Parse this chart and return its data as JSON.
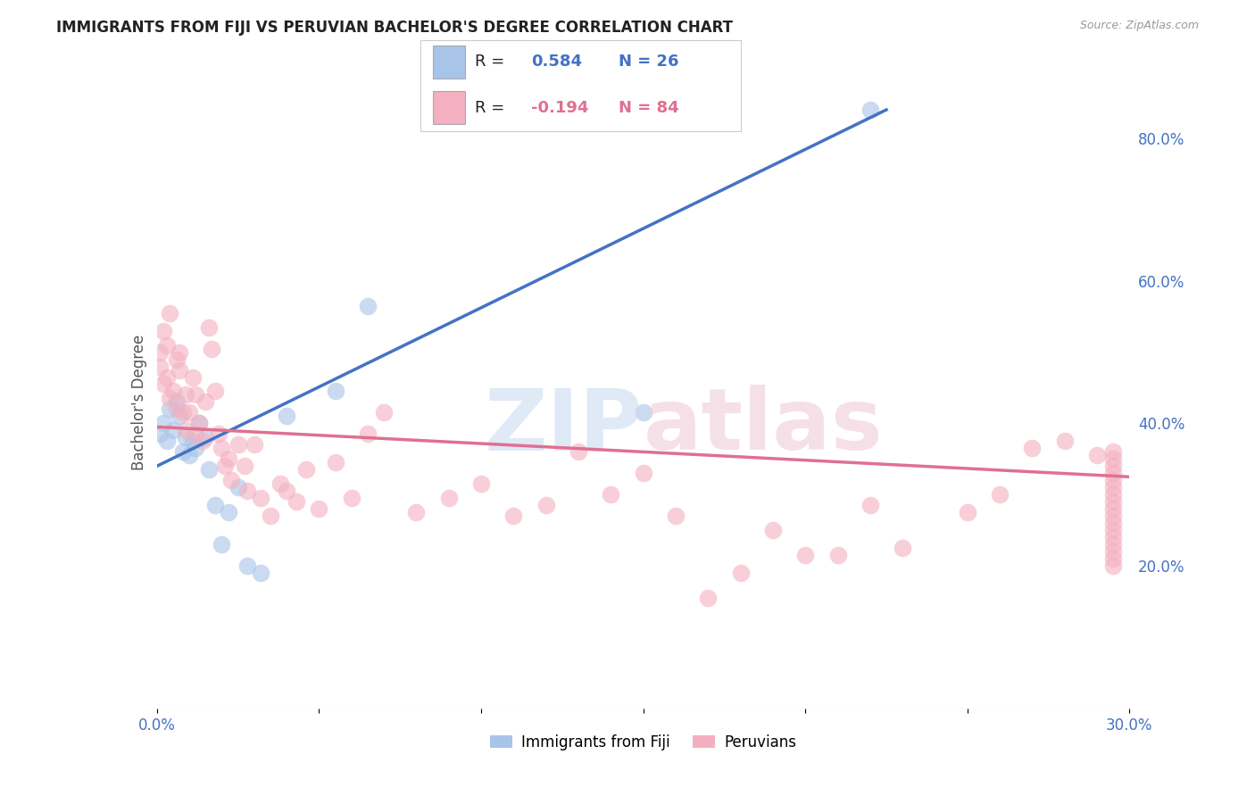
{
  "title": "IMMIGRANTS FROM FIJI VS PERUVIAN BACHELOR'S DEGREE CORRELATION CHART",
  "source": "Source: ZipAtlas.com",
  "ylabel": "Bachelor's Degree",
  "xlim": [
    0.0,
    0.3
  ],
  "ylim": [
    0.0,
    0.86
  ],
  "fiji_color": "#a8c4e8",
  "fiji_color_line": "#4472c4",
  "peru_color": "#f4b0c0",
  "peru_color_line": "#e07090",
  "fiji_R": "0.584",
  "fiji_N": "26",
  "peru_R": "-0.194",
  "peru_N": "84",
  "legend_R_color": "#4472c4",
  "legend_neg_R_color": "#e07090",
  "background_color": "#ffffff",
  "grid_color": "#dddddd",
  "fiji_line_x": [
    0.0,
    0.225
  ],
  "fiji_line_y": [
    0.34,
    0.84
  ],
  "peru_line_x": [
    0.0,
    0.3
  ],
  "peru_line_y": [
    0.395,
    0.325
  ],
  "fiji_x": [
    0.001,
    0.002,
    0.003,
    0.004,
    0.005,
    0.006,
    0.007,
    0.008,
    0.009,
    0.01,
    0.011,
    0.012,
    0.013,
    0.015,
    0.016,
    0.018,
    0.02,
    0.022,
    0.025,
    0.028,
    0.032,
    0.04,
    0.055,
    0.065,
    0.15,
    0.22
  ],
  "fiji_y": [
    0.385,
    0.4,
    0.375,
    0.42,
    0.39,
    0.43,
    0.41,
    0.36,
    0.38,
    0.355,
    0.375,
    0.365,
    0.4,
    0.38,
    0.335,
    0.285,
    0.23,
    0.275,
    0.31,
    0.2,
    0.19,
    0.41,
    0.445,
    0.565,
    0.415,
    0.84
  ],
  "peru_x": [
    0.001,
    0.001,
    0.002,
    0.002,
    0.003,
    0.003,
    0.004,
    0.004,
    0.005,
    0.006,
    0.006,
    0.007,
    0.007,
    0.008,
    0.009,
    0.009,
    0.01,
    0.011,
    0.012,
    0.012,
    0.013,
    0.014,
    0.015,
    0.016,
    0.017,
    0.018,
    0.019,
    0.02,
    0.021,
    0.022,
    0.023,
    0.025,
    0.027,
    0.028,
    0.03,
    0.032,
    0.035,
    0.038,
    0.04,
    0.043,
    0.046,
    0.05,
    0.055,
    0.06,
    0.065,
    0.07,
    0.08,
    0.09,
    0.1,
    0.11,
    0.12,
    0.13,
    0.14,
    0.15,
    0.16,
    0.17,
    0.18,
    0.19,
    0.2,
    0.21,
    0.22,
    0.23,
    0.25,
    0.26,
    0.27,
    0.28,
    0.29,
    0.295,
    0.295,
    0.295,
    0.295,
    0.295,
    0.295,
    0.295,
    0.295,
    0.295,
    0.295,
    0.295,
    0.295,
    0.295,
    0.295,
    0.295,
    0.295,
    0.295
  ],
  "peru_y": [
    0.5,
    0.48,
    0.455,
    0.53,
    0.465,
    0.51,
    0.435,
    0.555,
    0.445,
    0.49,
    0.42,
    0.5,
    0.475,
    0.415,
    0.39,
    0.44,
    0.415,
    0.465,
    0.385,
    0.44,
    0.4,
    0.375,
    0.43,
    0.535,
    0.505,
    0.445,
    0.385,
    0.365,
    0.34,
    0.35,
    0.32,
    0.37,
    0.34,
    0.305,
    0.37,
    0.295,
    0.27,
    0.315,
    0.305,
    0.29,
    0.335,
    0.28,
    0.345,
    0.295,
    0.385,
    0.415,
    0.275,
    0.295,
    0.315,
    0.27,
    0.285,
    0.36,
    0.3,
    0.33,
    0.27,
    0.155,
    0.19,
    0.25,
    0.215,
    0.215,
    0.285,
    0.225,
    0.275,
    0.3,
    0.365,
    0.375,
    0.355,
    0.36,
    0.35,
    0.34,
    0.33,
    0.32,
    0.31,
    0.3,
    0.29,
    0.28,
    0.27,
    0.26,
    0.25,
    0.24,
    0.23,
    0.22,
    0.21,
    0.2
  ]
}
